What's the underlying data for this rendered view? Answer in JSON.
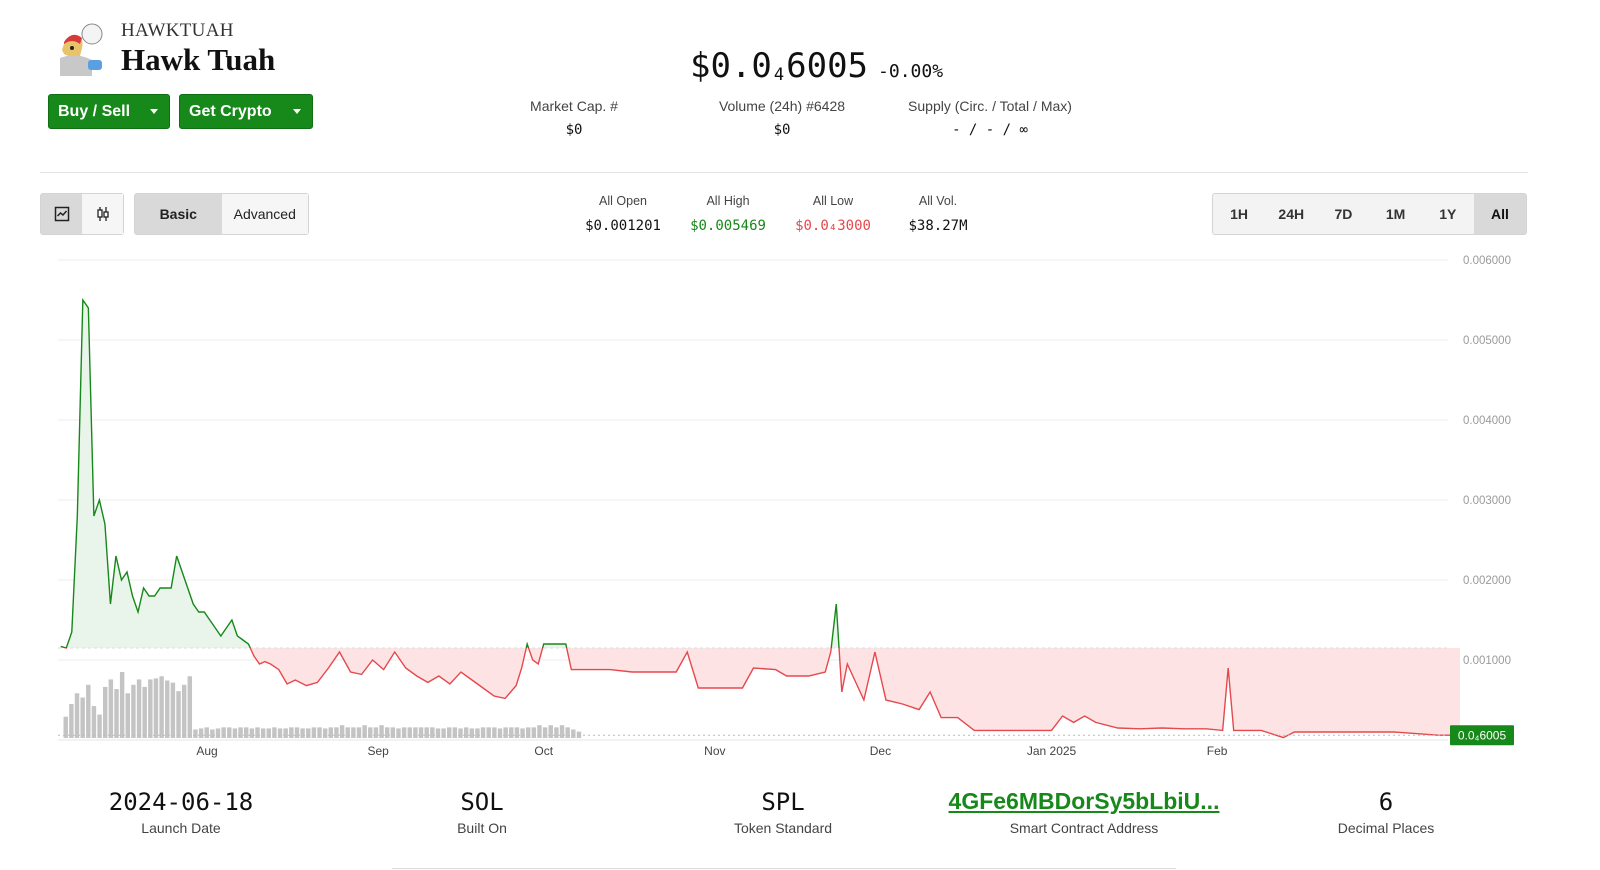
{
  "token": {
    "ticker": "HAWKTUAH",
    "name": "Hawk Tuah",
    "logo_icon": "hawk-tuah-avatar"
  },
  "actions": {
    "buy_sell": "Buy / Sell",
    "get_crypto": "Get Crypto"
  },
  "price": {
    "prefix": "$0.0",
    "zeros_sub": "4",
    "digits": "6005",
    "change": "-0.00%"
  },
  "stats": [
    {
      "label": "Market Cap. #",
      "value": "$0"
    },
    {
      "label": "Volume (24h) #6428",
      "value": "$0"
    },
    {
      "label": "Supply (Circ. / Total / Max)",
      "value": "- / - / ∞"
    }
  ],
  "toolbar": {
    "chart_types": [
      {
        "icon": "line-chart-icon",
        "active": true
      },
      {
        "icon": "candlestick-icon",
        "active": false
      }
    ],
    "modes": [
      {
        "label": "Basic",
        "active": true
      },
      {
        "label": "Advanced",
        "active": false
      }
    ],
    "ranges": [
      {
        "label": "1H",
        "active": false
      },
      {
        "label": "24H",
        "active": false
      },
      {
        "label": "7D",
        "active": false
      },
      {
        "label": "1M",
        "active": false
      },
      {
        "label": "1Y",
        "active": false
      },
      {
        "label": "All",
        "active": true
      }
    ]
  },
  "ohlc": [
    {
      "label": "All Open",
      "value": "$0.001201",
      "color": "#111111"
    },
    {
      "label": "All High",
      "value": "$0.005469",
      "color": "#17881a"
    },
    {
      "label": "All Low",
      "value": "$0.0₄3000",
      "color": "#e5484d"
    },
    {
      "label": "All Vol.",
      "value": "$38.27M",
      "color": "#111111"
    }
  ],
  "chart_data": {
    "type": "area",
    "x_ticks": [
      "Aug",
      "Sep",
      "Oct",
      "Nov",
      "Dec",
      "Jan 2025",
      "Feb"
    ],
    "y_ticks": [
      "0.006000",
      "0.005000",
      "0.004000",
      "0.003000",
      "0.002000",
      "0.001000"
    ],
    "ylim": [
      0,
      0.006
    ],
    "baseline": 0.00115,
    "last_price_label": "0.0₄6005",
    "colors": {
      "up": "#17881a",
      "down": "#e5484d",
      "up_fill": "#e9f5ea",
      "down_fill": "#fde3e4",
      "volume": "#c4c4c4",
      "grid": "#eeeeee",
      "axis_text": "#9a9a9a"
    },
    "x_range_days": [
      0,
      254
    ],
    "x_tick_days": [
      27,
      58,
      88,
      119,
      149,
      180,
      210
    ],
    "series": [
      {
        "values": [
          [
            0.5,
            0.00117
          ],
          [
            1.5,
            0.00115
          ],
          [
            2.5,
            0.00135
          ],
          [
            3.5,
            0.0028
          ],
          [
            4.5,
            0.0055
          ],
          [
            5.5,
            0.0054
          ],
          [
            6.5,
            0.0028
          ],
          [
            7.5,
            0.003
          ],
          [
            8.5,
            0.0027
          ],
          [
            9.5,
            0.0017
          ],
          [
            10.5,
            0.0023
          ],
          [
            11.5,
            0.002
          ],
          [
            12.5,
            0.0021
          ],
          [
            13.5,
            0.0018
          ],
          [
            14.5,
            0.0016
          ],
          [
            15.5,
            0.0019
          ],
          [
            16.5,
            0.0018
          ],
          [
            17.5,
            0.0018
          ],
          [
            18.5,
            0.0019
          ],
          [
            19.5,
            0.0019
          ],
          [
            20.5,
            0.0019
          ],
          [
            21.5,
            0.0023
          ],
          [
            22.5,
            0.0021
          ],
          [
            23.5,
            0.0019
          ],
          [
            24.5,
            0.0017
          ],
          [
            25.5,
            0.0016
          ],
          [
            26.5,
            0.0016
          ],
          [
            27.5,
            0.0015
          ],
          [
            28.5,
            0.0014
          ],
          [
            29.5,
            0.0013
          ],
          [
            30.5,
            0.0014
          ],
          [
            31.5,
            0.0015
          ],
          [
            32.5,
            0.0013
          ],
          [
            33.5,
            0.00125
          ],
          [
            34.5,
            0.0012
          ],
          [
            35.5,
            0.00105
          ],
          [
            36.5,
            0.00095
          ],
          [
            37.5,
            0.00098
          ],
          [
            38.5,
            0.00095
          ],
          [
            40,
            0.00088
          ],
          [
            41.5,
            0.0007
          ],
          [
            43,
            0.00075
          ],
          [
            45,
            0.00068
          ],
          [
            47,
            0.00072
          ],
          [
            49,
            0.0009
          ],
          [
            51,
            0.0011
          ],
          [
            53,
            0.00085
          ],
          [
            55,
            0.00082
          ],
          [
            57,
            0.001
          ],
          [
            59,
            0.00088
          ],
          [
            61,
            0.0011
          ],
          [
            63,
            0.0009
          ],
          [
            65,
            0.0008
          ],
          [
            67,
            0.00072
          ],
          [
            69,
            0.0008
          ],
          [
            71,
            0.0007
          ],
          [
            73,
            0.00085
          ],
          [
            75,
            0.00075
          ],
          [
            77,
            0.00065
          ],
          [
            79,
            0.00055
          ],
          [
            81,
            0.00052
          ],
          [
            83,
            0.00068
          ],
          [
            84,
            0.0009
          ],
          [
            85,
            0.0012
          ],
          [
            86,
            0.001
          ],
          [
            87,
            0.00095
          ],
          [
            88,
            0.0012
          ],
          [
            90,
            0.0012
          ],
          [
            92,
            0.0012
          ],
          [
            93,
            0.00088
          ],
          [
            96,
            0.00088
          ],
          [
            100,
            0.00088
          ],
          [
            104,
            0.00085
          ],
          [
            108,
            0.00085
          ],
          [
            112,
            0.00085
          ],
          [
            114,
            0.0011
          ],
          [
            116,
            0.00065
          ],
          [
            120,
            0.00065
          ],
          [
            124,
            0.00065
          ],
          [
            126,
            0.0009
          ],
          [
            130,
            0.00088
          ],
          [
            132,
            0.0008
          ],
          [
            136,
            0.0008
          ],
          [
            139,
            0.00085
          ],
          [
            140,
            0.0011
          ],
          [
            141,
            0.0017
          ],
          [
            142,
            0.0006
          ],
          [
            143,
            0.00095
          ],
          [
            146,
            0.0005
          ],
          [
            148,
            0.0011
          ],
          [
            150,
            0.0005
          ],
          [
            153,
            0.00045
          ],
          [
            156,
            0.00038
          ],
          [
            158,
            0.0006
          ],
          [
            160,
            0.00028
          ],
          [
            163,
            0.00028
          ],
          [
            166,
            0.00012
          ],
          [
            170,
            0.00012
          ],
          [
            175,
            0.00012
          ],
          [
            180,
            0.00012
          ],
          [
            182,
            0.0003
          ],
          [
            184,
            0.00022
          ],
          [
            186,
            0.0003
          ],
          [
            188,
            0.00022
          ],
          [
            192,
            0.00015
          ],
          [
            196,
            0.00014
          ],
          [
            200,
            0.00015
          ],
          [
            204,
            0.00014
          ],
          [
            208,
            0.00014
          ],
          [
            211,
            0.00012
          ],
          [
            212,
            0.0009
          ],
          [
            213,
            0.00012
          ],
          [
            218,
            0.00012
          ],
          [
            222,
            3e-05
          ],
          [
            224,
            0.0001
          ],
          [
            230,
            0.0001
          ],
          [
            236,
            0.0001
          ],
          [
            242,
            0.0001
          ],
          [
            246,
            8e-05
          ],
          [
            250,
            6e-05
          ],
          [
            254,
            6e-05
          ]
        ]
      }
    ],
    "volume": [
      0.2,
      0.32,
      0.42,
      0.38,
      0.5,
      0.3,
      0.22,
      0.48,
      0.55,
      0.46,
      0.62,
      0.42,
      0.5,
      0.55,
      0.48,
      0.55,
      0.56,
      0.58,
      0.54,
      0.52,
      0.44,
      0.5,
      0.58,
      0.08,
      0.09,
      0.1,
      0.08,
      0.09,
      0.1,
      0.1,
      0.09,
      0.1,
      0.1,
      0.09,
      0.1,
      0.09,
      0.09,
      0.1,
      0.09,
      0.09,
      0.1,
      0.1,
      0.09,
      0.09,
      0.1,
      0.1,
      0.09,
      0.1,
      0.1,
      0.12,
      0.1,
      0.1,
      0.1,
      0.12,
      0.1,
      0.1,
      0.12,
      0.1,
      0.1,
      0.09,
      0.1,
      0.1,
      0.1,
      0.1,
      0.1,
      0.1,
      0.09,
      0.09,
      0.1,
      0.1,
      0.09,
      0.1,
      0.09,
      0.09,
      0.1,
      0.1,
      0.1,
      0.09,
      0.1,
      0.1,
      0.1,
      0.09,
      0.1,
      0.1,
      0.12,
      0.1,
      0.12,
      0.1,
      0.12,
      0.1,
      0.08,
      0.06
    ]
  },
  "info": [
    {
      "value": "2024-06-18",
      "label": "Launch Date"
    },
    {
      "value": "SOL",
      "label": "Built On"
    },
    {
      "value": "SPL",
      "label": "Token Standard"
    },
    {
      "value": "4GFe6MBDorSy5bLbiU...",
      "label": "Smart Contract Address"
    },
    {
      "value": "6",
      "label": "Decimal Places"
    }
  ]
}
